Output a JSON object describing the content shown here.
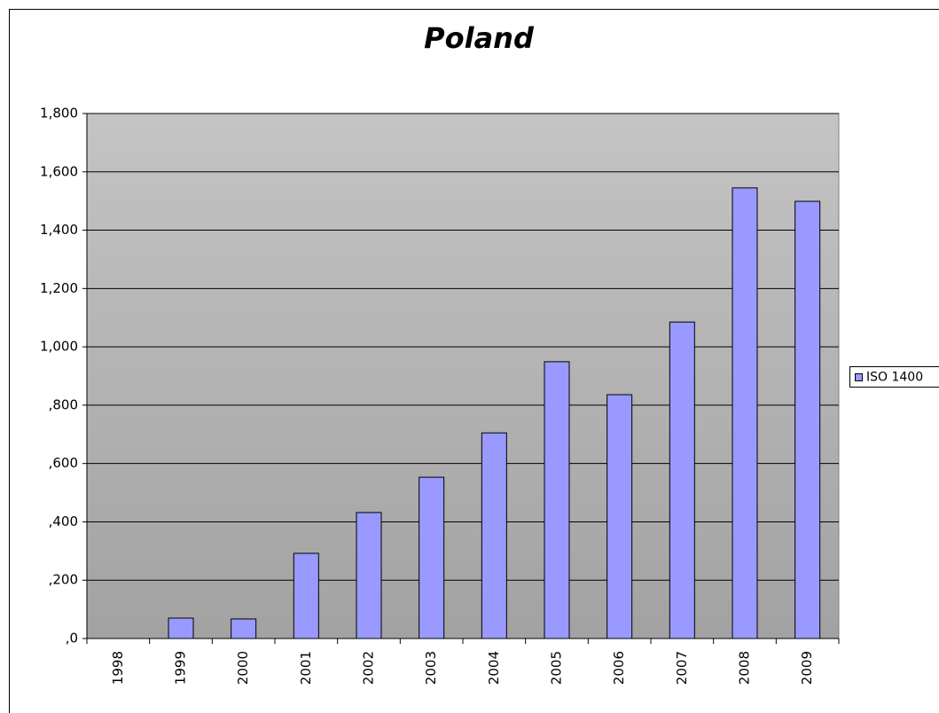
{
  "chart_data": {
    "type": "bar",
    "title": "Poland",
    "categories": [
      "1998",
      "1999",
      "2000",
      "2001",
      "2002",
      "2003",
      "2004",
      "2005",
      "2006",
      "2007",
      "2008",
      "2009"
    ],
    "series": [
      {
        "name": "ISO 1400",
        "color": "#9999ff",
        "values": [
          0,
          70,
          67,
          292,
          432,
          553,
          705,
          949,
          836,
          1085,
          1545,
          1499
        ]
      }
    ],
    "ylim": [
      0,
      1800
    ],
    "yticks": [
      {
        "value": 0,
        "label": ",0"
      },
      {
        "value": 200,
        "label": ",200"
      },
      {
        "value": 400,
        "label": ",400"
      },
      {
        "value": 600,
        "label": ",600"
      },
      {
        "value": 800,
        "label": ",800"
      },
      {
        "value": 1000,
        "label": "1,000"
      },
      {
        "value": 1200,
        "label": "1,200"
      },
      {
        "value": 1400,
        "label": "1,400"
      },
      {
        "value": 1600,
        "label": "1,600"
      },
      {
        "value": 1800,
        "label": "1,800"
      }
    ],
    "grid": true,
    "legend": "right"
  }
}
